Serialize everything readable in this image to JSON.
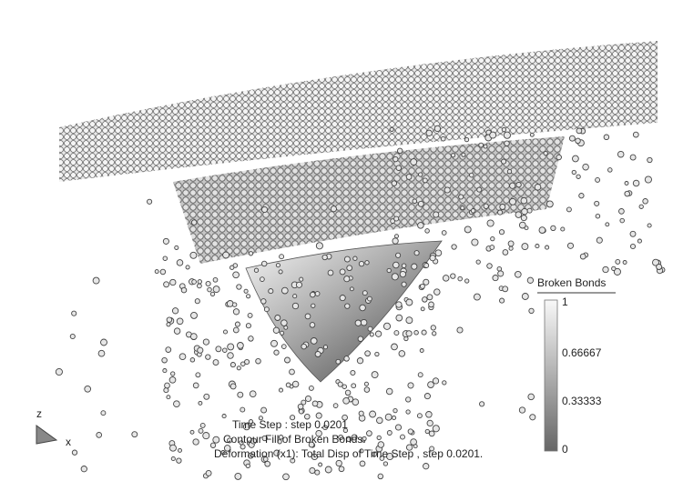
{
  "legend": {
    "title": "Broken Bonds",
    "ticks": [
      "1",
      "0.66667",
      "0.33333",
      "0"
    ]
  },
  "caption": [
    "Time Step : step 0.0201",
    "Contour Fill of Broken Bonds.",
    "Deformation (x1): Total Disp of Time Step , step 0.0201."
  ],
  "triad": {
    "z": "z",
    "x": "x"
  }
}
